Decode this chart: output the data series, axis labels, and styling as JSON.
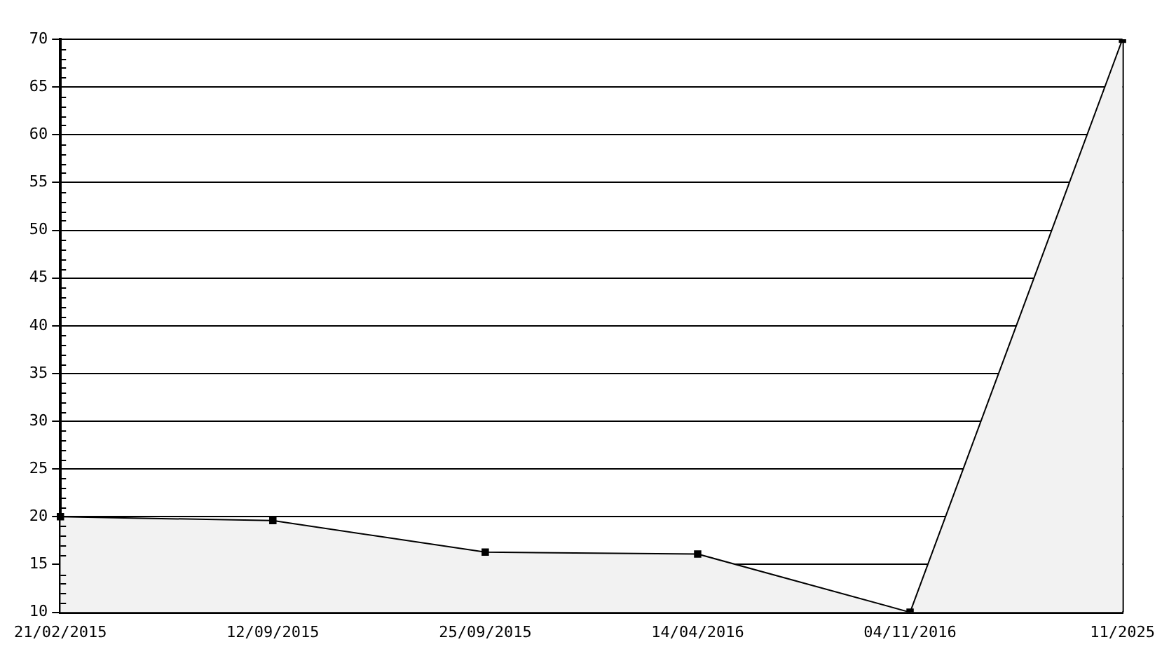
{
  "chart_data": {
    "type": "area",
    "categories": [
      "21/02/2015",
      "12/09/2015",
      "25/09/2015",
      "14/04/2016",
      "04/11/2016",
      "11/2025"
    ],
    "series": [
      {
        "color": "#000000",
        "values": [
          20,
          19.6,
          16.3,
          16.1,
          10,
          70
        ]
      }
    ],
    "ylim": [
      10,
      70
    ],
    "yticks": [
      10,
      15,
      20,
      25,
      30,
      35,
      40,
      45,
      50,
      55,
      60,
      65,
      70
    ],
    "grid": "y",
    "marker": "square",
    "legend": false
  }
}
